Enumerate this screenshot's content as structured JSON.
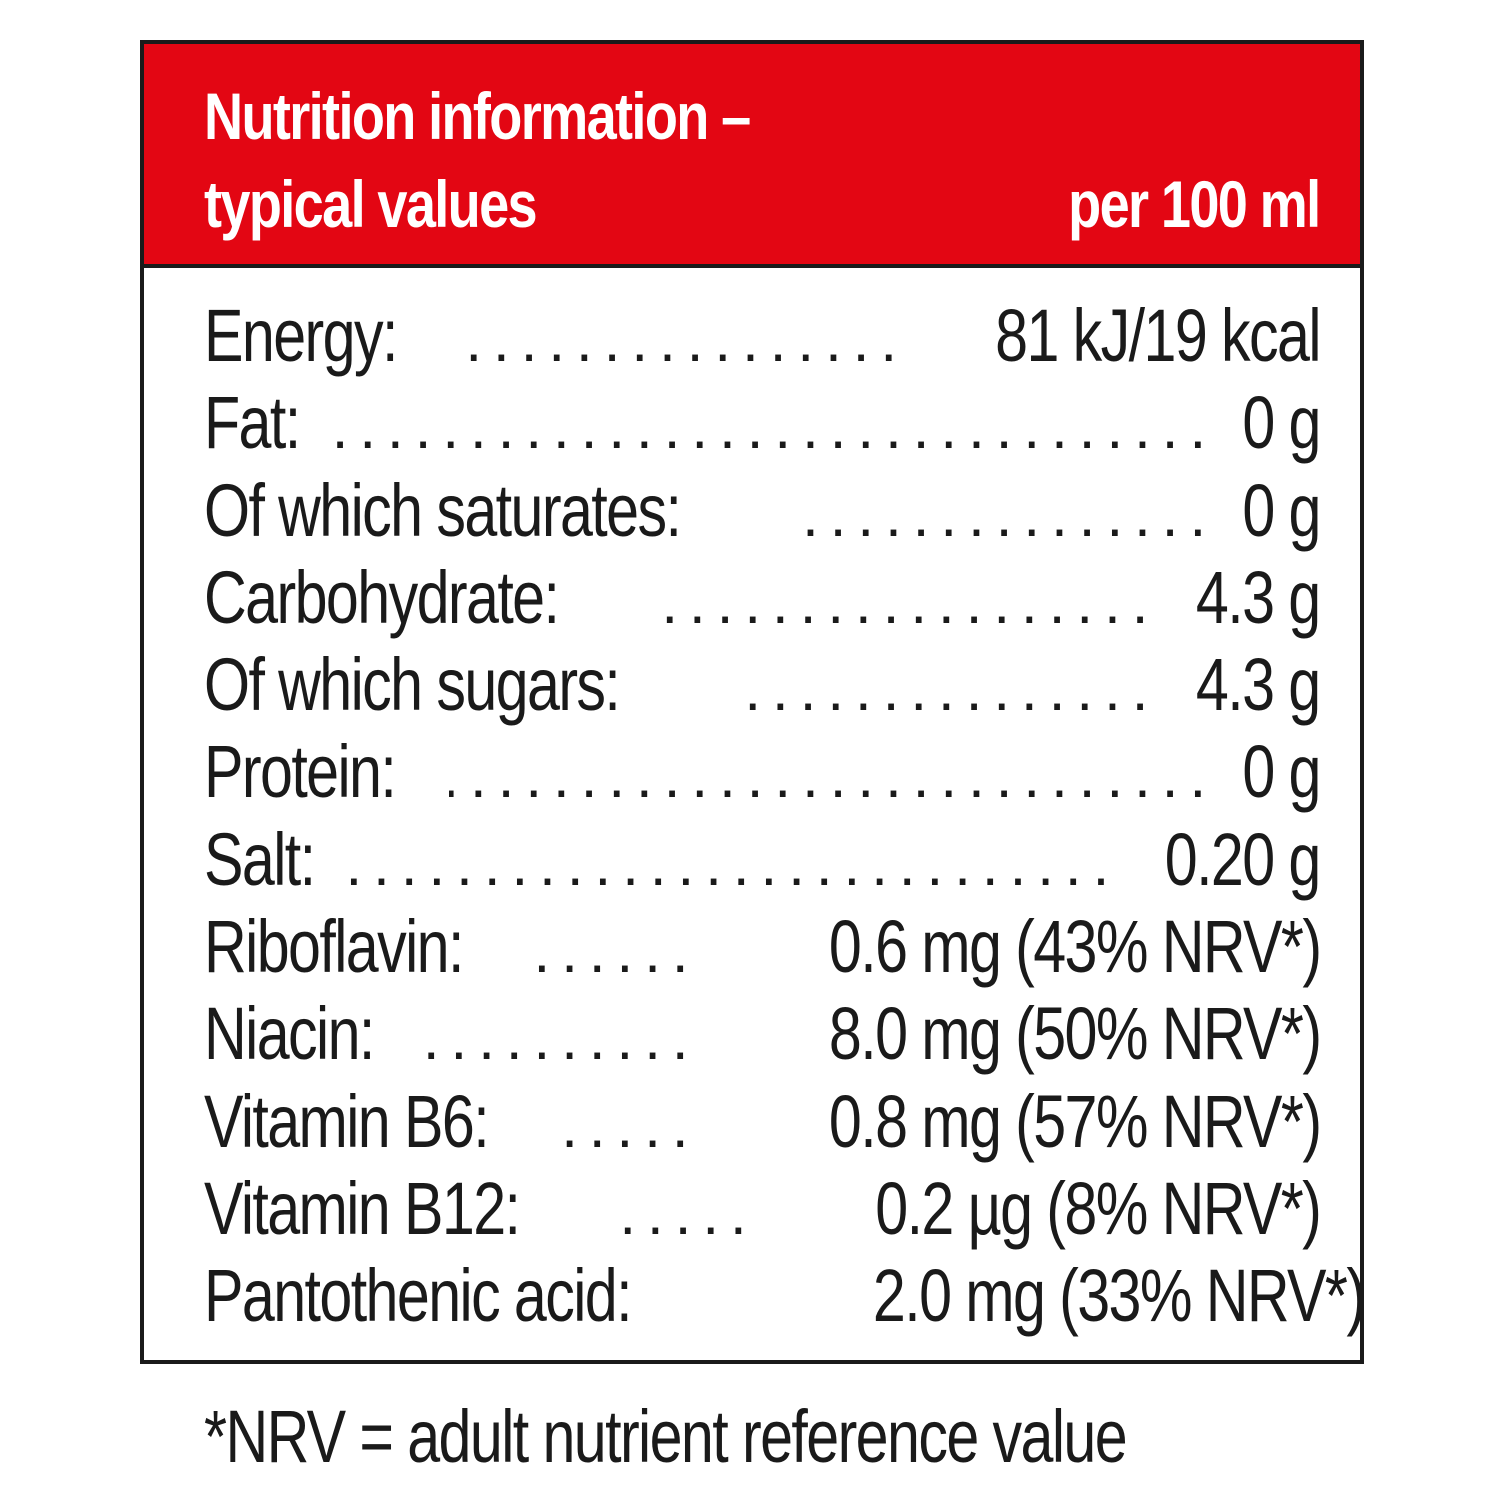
{
  "header": {
    "title_line1": "Nutrition information –",
    "title_line2": "typical values",
    "per": "per 100 ml"
  },
  "rows": [
    {
      "label": "Energy:",
      "value": "81 kJ/19 kcal"
    },
    {
      "label": "Fat:",
      "value": "0 g"
    },
    {
      "label": "Of which saturates:",
      "value": "0 g"
    },
    {
      "label": "Carbohydrate:",
      "value": "4.3 g"
    },
    {
      "label": "Of which sugars:",
      "value": "4.3 g"
    },
    {
      "label": "Protein:",
      "value": "0 g"
    },
    {
      "label": "Salt:",
      "value": "0.20 g"
    },
    {
      "label": "Riboflavin:",
      "value": "0.6 mg (43% NRV*)"
    },
    {
      "label": "Niacin:",
      "value": "8.0 mg (50% NRV*)"
    },
    {
      "label": "Vitamin B6:",
      "value": "0.8 mg (57% NRV*)"
    },
    {
      "label": "Vitamin B12:",
      "value": "0.2 µg (8% NRV*)"
    },
    {
      "label": "Pantothenic acid:",
      "value": "2.0 mg (33% NRV*)"
    }
  ],
  "footnote": "*NRV = adult nutrient reference value",
  "colors": {
    "header_background": "#e30613",
    "header_text": "#ffffff",
    "border": "#1a1a1a",
    "text": "#1a1a1a"
  }
}
